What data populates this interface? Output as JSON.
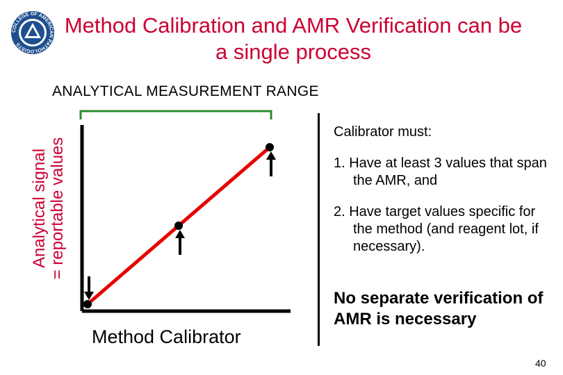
{
  "title": "Method Calibration and AMR Verification can be a single process",
  "logo": {
    "text": "COLLEGE OF AMERICAN PATHOLOGISTS",
    "icon": "cap-seal-icon",
    "color": "#1f4f8f"
  },
  "range_label": "ANALYTICAL MEASUREMENT RANGE",
  "y_axis_label_line1": "Analytical signal",
  "y_axis_label_line2": "= reportable values",
  "x_axis_label": "Method Calibrator",
  "side_heading": "Calibrator must:",
  "requirements": [
    {
      "text": "1. Have at least 3 values that span the AMR, and"
    },
    {
      "text": "2. Have target values specific for the method (and reagent lot, if necessary)."
    }
  ],
  "conclusion": "No separate verification of AMR is necessary",
  "page_number": "40",
  "colors": {
    "title": "#cc0033",
    "line": "#e60000",
    "bracket": "#2e8b2e",
    "ink": "#000000"
  },
  "chart_data": {
    "type": "line",
    "title": "",
    "xlabel": "Method Calibrator",
    "ylabel": "Analytical signal = reportable values",
    "points": [
      {
        "x": 0,
        "y": 0,
        "arrow": "down"
      },
      {
        "x": 1,
        "y": 1,
        "arrow": "up"
      },
      {
        "x": 2,
        "y": 2,
        "arrow": "up"
      }
    ],
    "xlim": [
      0,
      2
    ],
    "ylim": [
      0,
      2
    ],
    "grid": false
  }
}
